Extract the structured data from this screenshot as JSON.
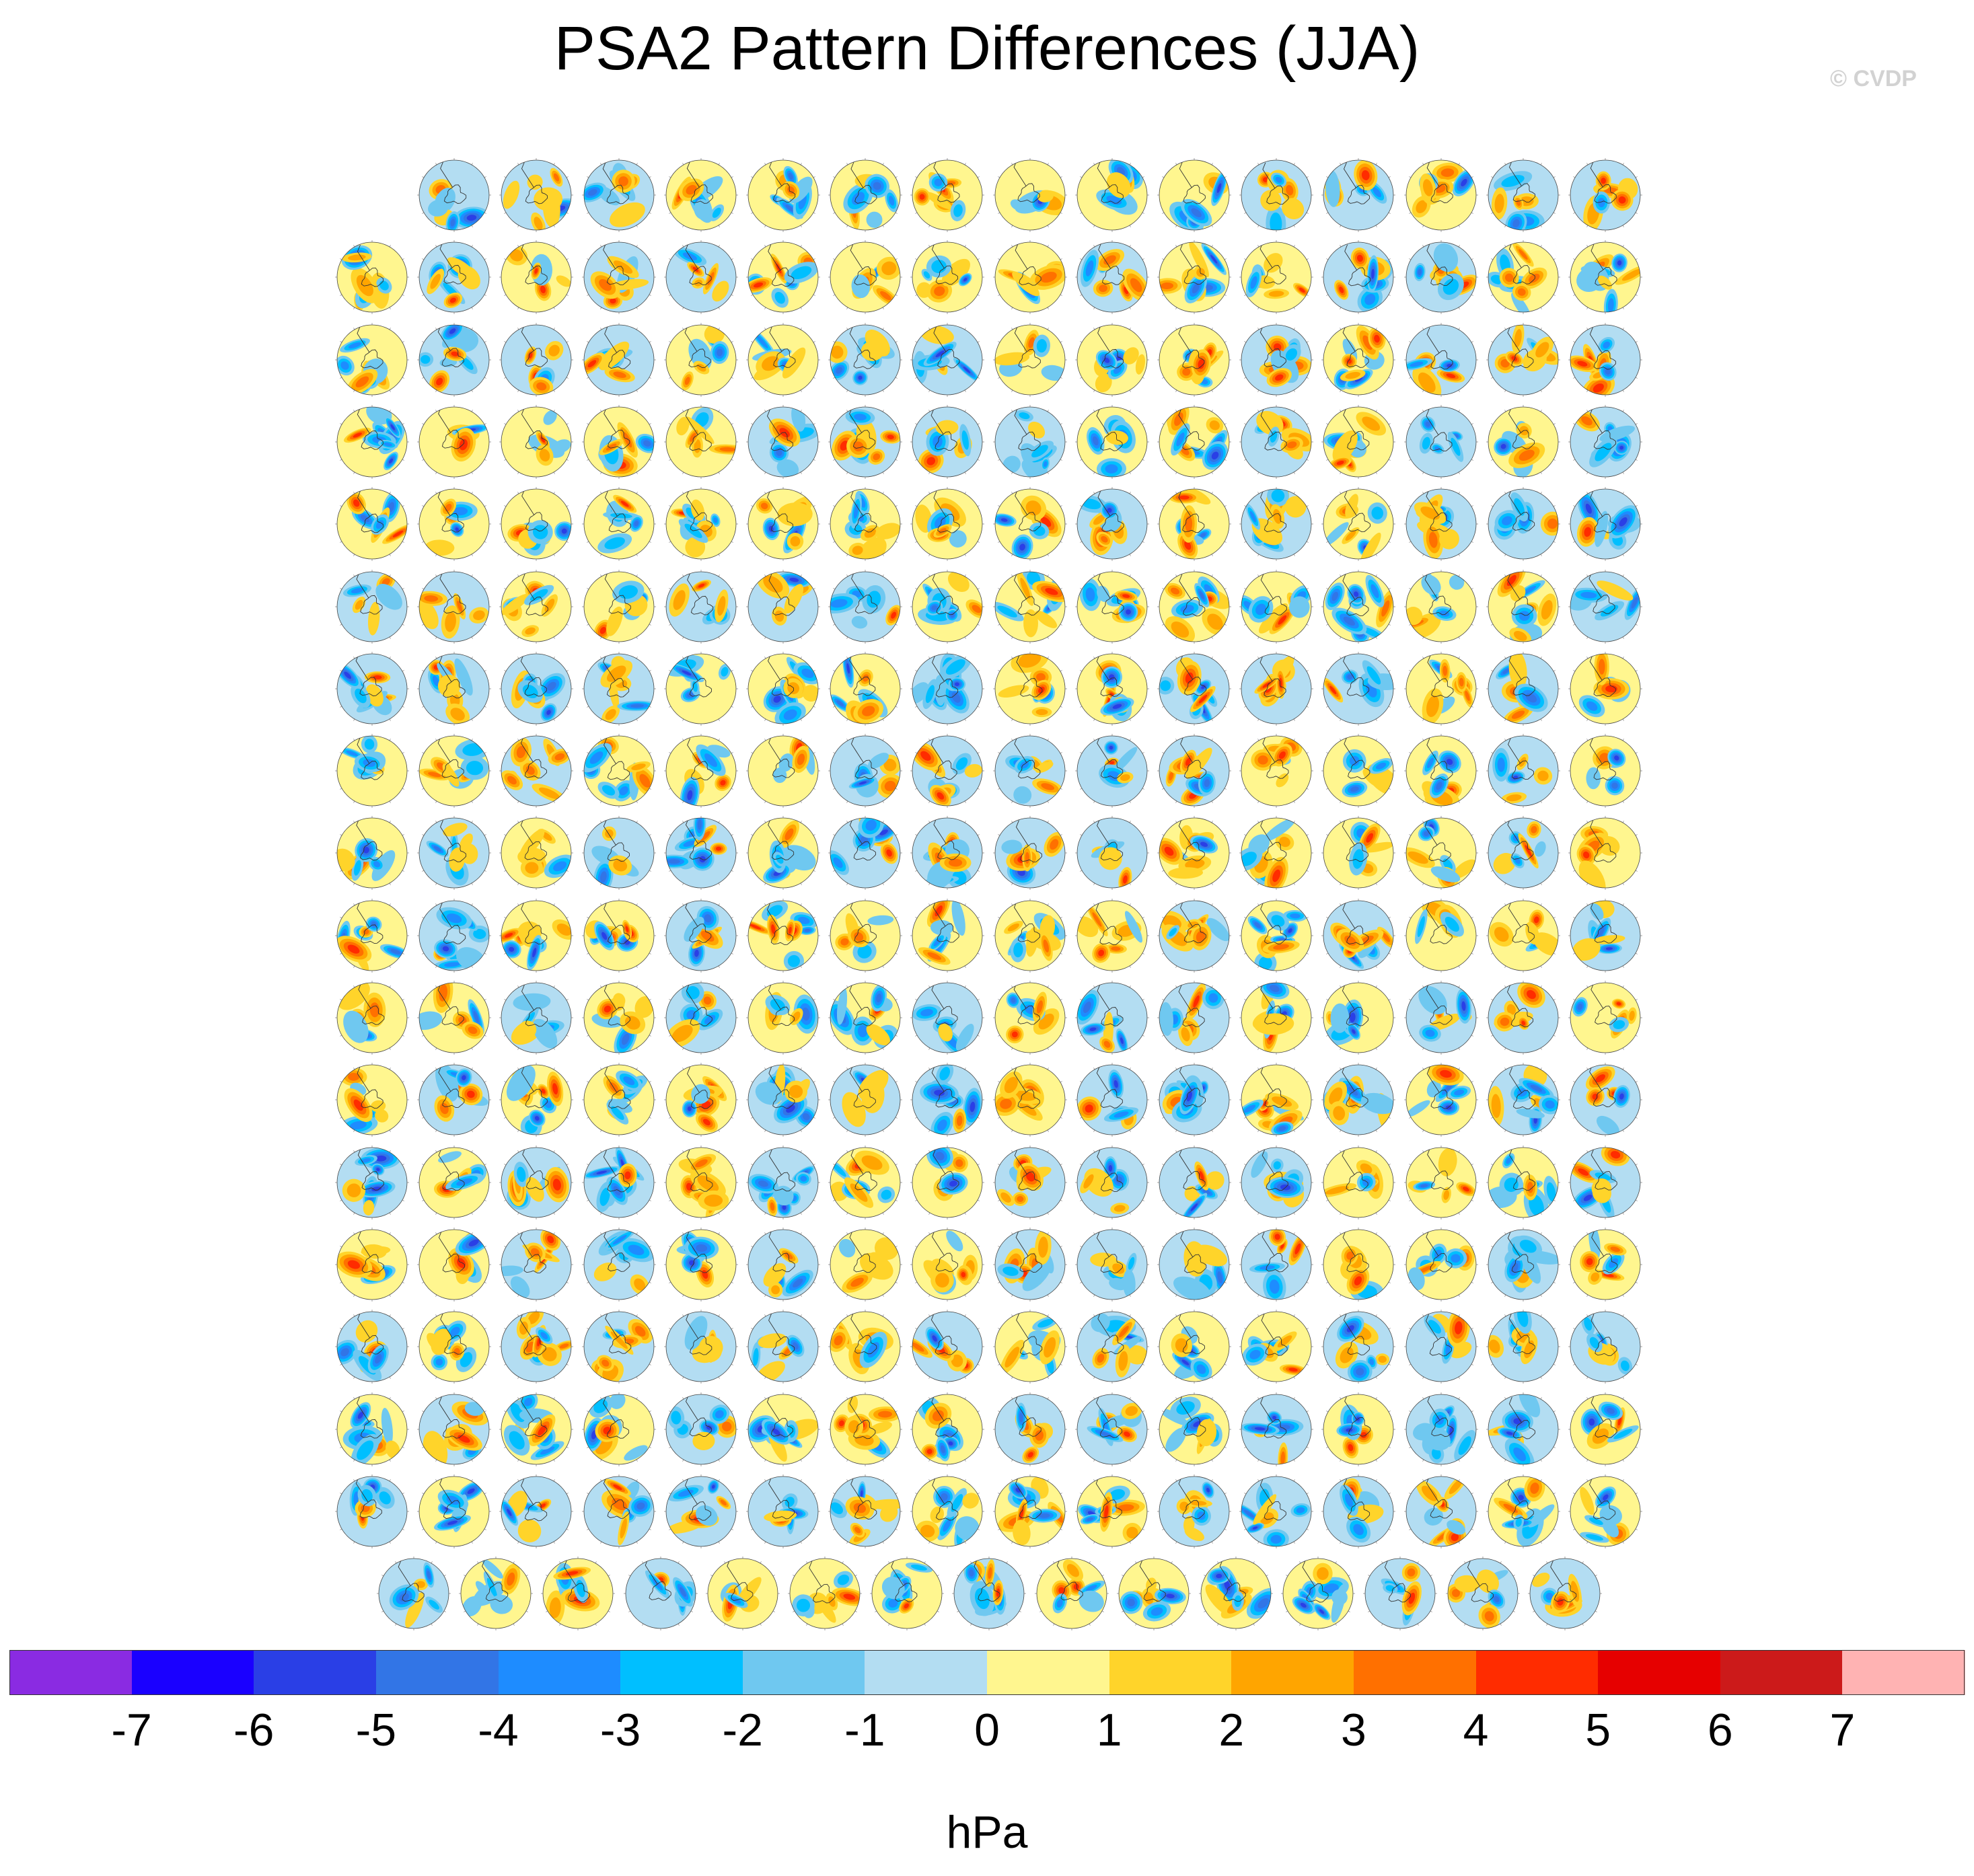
{
  "title": "PSA2 Pattern Differences (JJA)",
  "watermark": "© CVDP",
  "units": "hPa",
  "colorbar": {
    "ticks": [
      "-7",
      "-6",
      "-5",
      "-4",
      "-3",
      "-2",
      "-1",
      "0",
      "1",
      "2",
      "3",
      "4",
      "5",
      "6",
      "7"
    ],
    "colors": [
      "#8a2be2",
      "#1a00ff",
      "#2a3fe6",
      "#3275e6",
      "#1e8cff",
      "#00bfff",
      "#6fc8f0",
      "#b3ddf2",
      "#fff68f",
      "#ffd42a",
      "#ffa500",
      "#ff7000",
      "#ff2c00",
      "#e60000",
      "#cc1a1a",
      "#ffb3b3"
    ]
  },
  "grid": {
    "rows": 18,
    "columns": 16,
    "row_counts": [
      15,
      16,
      16,
      16,
      16,
      16,
      16,
      16,
      16,
      16,
      16,
      16,
      16,
      16,
      16,
      16,
      16,
      15
    ]
  },
  "chart_data": {
    "type": "heatmap",
    "title": "PSA2 Pattern Differences (JJA)",
    "description_panels": "Grid of polar stereographic Southern Hemisphere map panels, each showing contour-filled PSA2 sea level pressure pattern differences",
    "panel_count": 286,
    "colorbar_levels": [
      -7,
      -6,
      -5,
      -4,
      -3,
      -2,
      -1,
      0,
      1,
      2,
      3,
      4,
      5,
      6,
      7
    ],
    "units": "hPa",
    "colormap": [
      "#8a2be2",
      "#1a00ff",
      "#2a3fe6",
      "#3275e6",
      "#1e8cff",
      "#00bfff",
      "#6fc8f0",
      "#b3ddf2",
      "#fff68f",
      "#ffd42a",
      "#ffa500",
      "#ff7000",
      "#ff2c00",
      "#e60000",
      "#cc1a1a",
      "#ffb3b3"
    ]
  }
}
